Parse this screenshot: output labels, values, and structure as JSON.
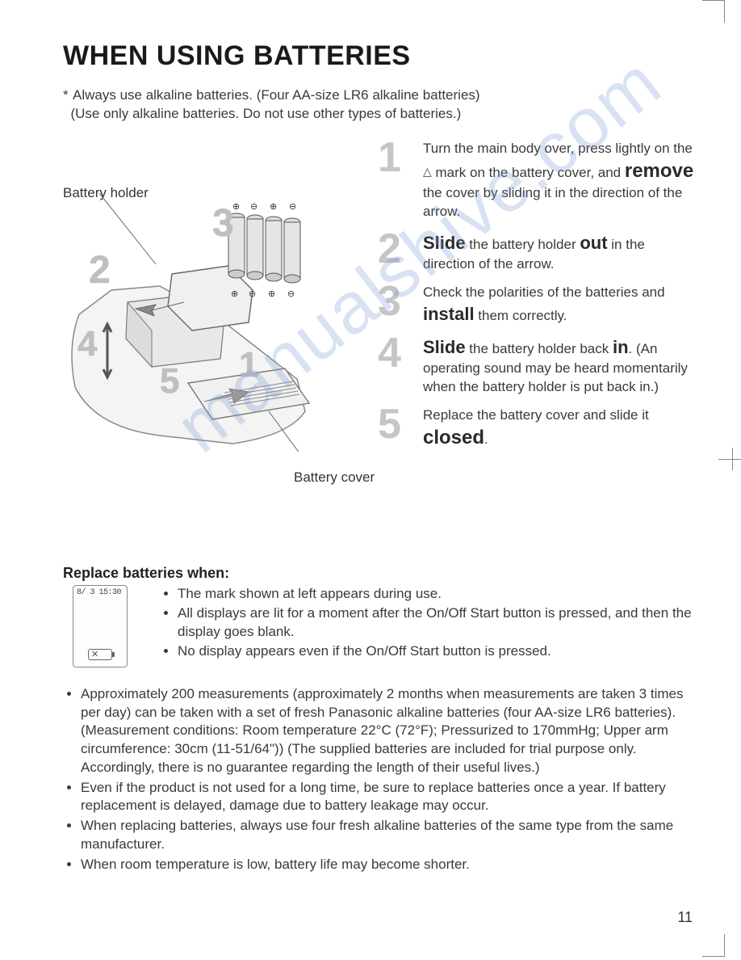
{
  "title": "WHEN USING BATTERIES",
  "intro_line1": "Always use alkaline batteries. (Four AA-size LR6 alkaline batteries)",
  "intro_line2": "(Use only alkaline batteries. Do not use other types of batteries.)",
  "labels": {
    "battery_holder": "Battery holder",
    "battery_cover": "Battery cover"
  },
  "diagram_numbers": [
    "1",
    "2",
    "3",
    "4",
    "5"
  ],
  "steps": [
    {
      "num": "1",
      "parts": [
        {
          "t": "text",
          "v": "Turn the main body over, press lightly on the "
        },
        {
          "t": "tri",
          "v": "△"
        },
        {
          "t": "text",
          "v": " mark on the battery cover, and "
        },
        {
          "t": "kwbig",
          "v": "remove"
        },
        {
          "t": "text",
          "v": " the cover by sliding it in the direction of the arrow."
        }
      ]
    },
    {
      "num": "2",
      "parts": [
        {
          "t": "kwmid",
          "v": "Slide"
        },
        {
          "t": "text",
          "v": " the battery holder "
        },
        {
          "t": "kwmid",
          "v": "out"
        },
        {
          "t": "text",
          "v": " in the direction of the arrow."
        }
      ]
    },
    {
      "num": "3",
      "parts": [
        {
          "t": "text",
          "v": "Check the polarities of the batteries and "
        },
        {
          "t": "kwmid",
          "v": "install"
        },
        {
          "t": "text",
          "v": " them correctly."
        }
      ]
    },
    {
      "num": "4",
      "parts": [
        {
          "t": "kwmid",
          "v": "Slide"
        },
        {
          "t": "text",
          "v": " the battery holder back "
        },
        {
          "t": "kwmid",
          "v": "in"
        },
        {
          "t": "text",
          "v": ". (An operating sound may be heard momentarily when the battery holder is put back in.)"
        }
      ]
    },
    {
      "num": "5",
      "parts": [
        {
          "t": "text",
          "v": "Replace the battery cover and slide it "
        },
        {
          "t": "kwbig",
          "v": "closed"
        },
        {
          "t": "text",
          "v": "."
        }
      ]
    }
  ],
  "replace_header": "Replace batteries when:",
  "lcd_text": "8/ 3 15:30",
  "replace_bullets": [
    "The mark shown at left appears during use.",
    "All displays are lit for a moment after the On/Off Start button is pressed, and then the display goes blank.",
    "No display appears even if the On/Off Start button is pressed."
  ],
  "notes": [
    "Approximately 200 measurements (approximately 2 months when measurements are taken 3 times per day) can be taken with a set of fresh Panasonic alkaline batteries (four AA-size LR6 batteries). (Measurement conditions: Room temperature 22°C (72°F); Pressurized to 170mmHg; Upper arm circumference: 30cm (11-51/64\")) (The supplied batteries are included for trial purpose only. Accordingly, there is no guarantee regarding the length of their useful lives.)",
    "Even if the product is not used for a long time, be sure to replace batteries once a year. If battery replacement is delayed, damage due to battery leakage may occur.",
    "When replacing batteries, always use four fresh alkaline batteries of the same type from the same manufacturer.",
    "When room temperature is low, battery life may become shorter."
  ],
  "page_number": "11",
  "watermark": "manualshive.com",
  "colors": {
    "text": "#3a3a3a",
    "heading": "#1a1a1a",
    "stepnum": "#c5c5c5",
    "watermark": "rgba(120,150,210,0.28)"
  }
}
